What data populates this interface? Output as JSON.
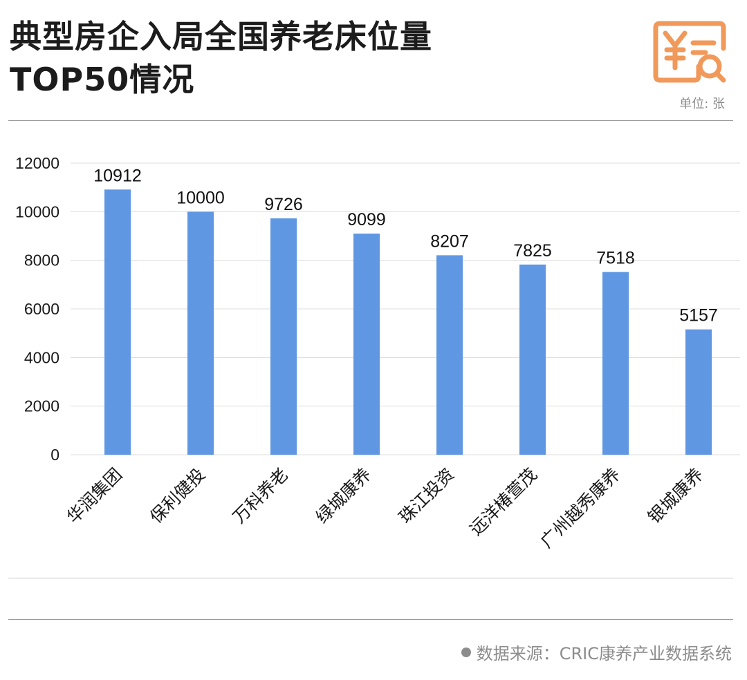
{
  "header": {
    "title_line1": "典型房企入局全国养老床位量",
    "title_line2": "TOP50情况",
    "unit": "单位: 张"
  },
  "footer": {
    "source": "数据来源：CRIC康养产业数据系统"
  },
  "colors": {
    "bar": "#5f97e3",
    "grid": "#dcdcdc",
    "logo": "#f0995a"
  },
  "icons": {
    "logo": "yen-receipt-search-icon",
    "source_bullet": "bullet-dot-icon"
  },
  "chart_data": {
    "type": "bar",
    "title": "典型房企入局全国养老床位量TOP50情况",
    "categories": [
      "华润集团",
      "保利健投",
      "万科养老",
      "绿城康养",
      "珠江投资",
      "远洋椿萱茂",
      "广州越秀康养",
      "银城康养"
    ],
    "values": [
      10912,
      10000,
      9726,
      9099,
      8207,
      7825,
      7518,
      5157
    ],
    "ylim": [
      0,
      12000
    ],
    "yticks": [
      0,
      2000,
      4000,
      6000,
      8000,
      10000,
      12000
    ],
    "xlabel": "",
    "ylabel": "",
    "grid": true,
    "legend": "none",
    "data_labels": true
  }
}
